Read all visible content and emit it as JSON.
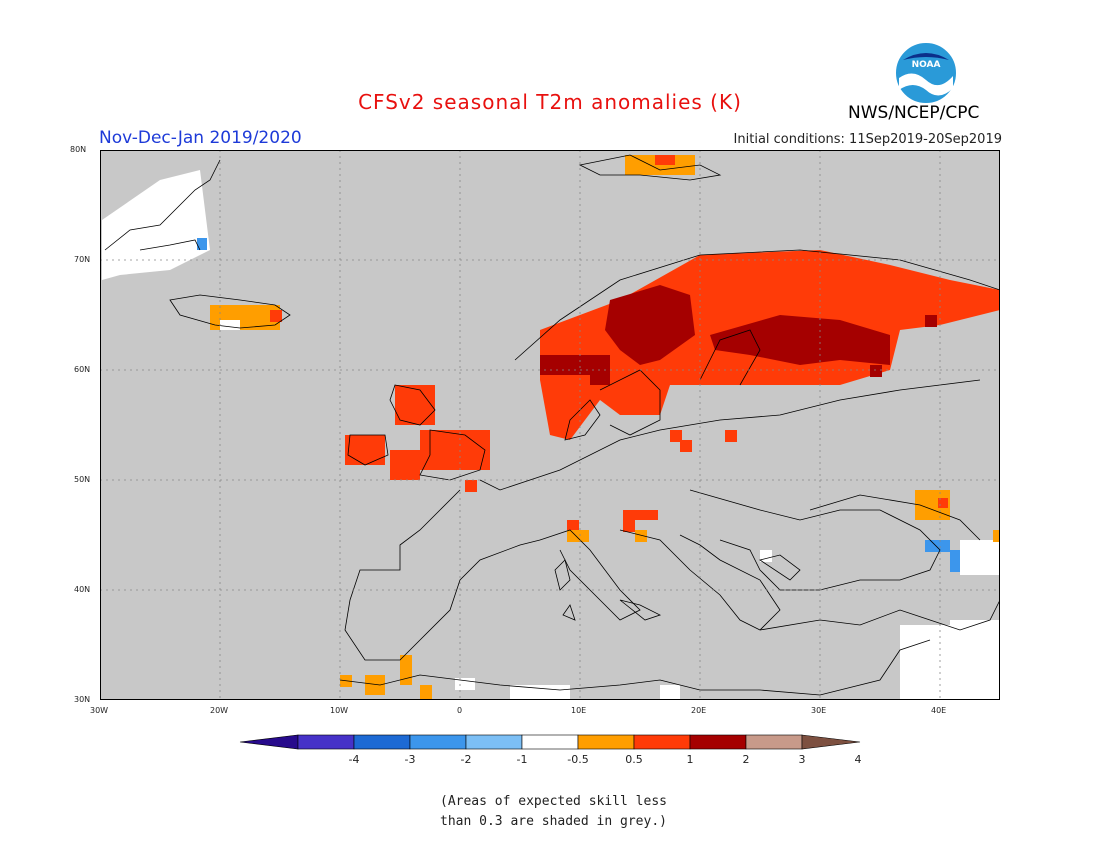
{
  "title": "CFSv2 seasonal T2m anomalies (K)",
  "period": "Nov-Dec-Jan 2019/2020",
  "initial_conditions": "Initial conditions: 11Sep2019-20Sep2019",
  "agency": "NWS/NCEP/CPC",
  "logo_text": "NOAA",
  "lat_labels": [
    "80N",
    "70N",
    "60N",
    "50N",
    "40N",
    "30N"
  ],
  "lon_labels": [
    "30W",
    "20W",
    "10W",
    "0",
    "10E",
    "20E",
    "30E",
    "40E"
  ],
  "colorbar": {
    "tick_labels": [
      "-4",
      "-3",
      "-2",
      "-1",
      "-0.5",
      "0.5",
      "1",
      "2",
      "3",
      "4"
    ],
    "colors": [
      "#270a8c",
      "#4632c8",
      "#1d6ad4",
      "#3c96ec",
      "#7cbff5",
      "#ffffff",
      "#ff9e00",
      "#ff3b08",
      "#a50000",
      "#c89a8a",
      "#7d5040"
    ]
  },
  "note": [
    "(Areas of expected skill less",
    "than 0.3 are shaded in grey.)"
  ],
  "colors": {
    "grey": "#c8c8c8",
    "orange": "#ff9e00",
    "red": "#ff3b08",
    "darkred": "#a50000",
    "lightblue": "#7cbff5",
    "blue": "#3c96ec"
  }
}
